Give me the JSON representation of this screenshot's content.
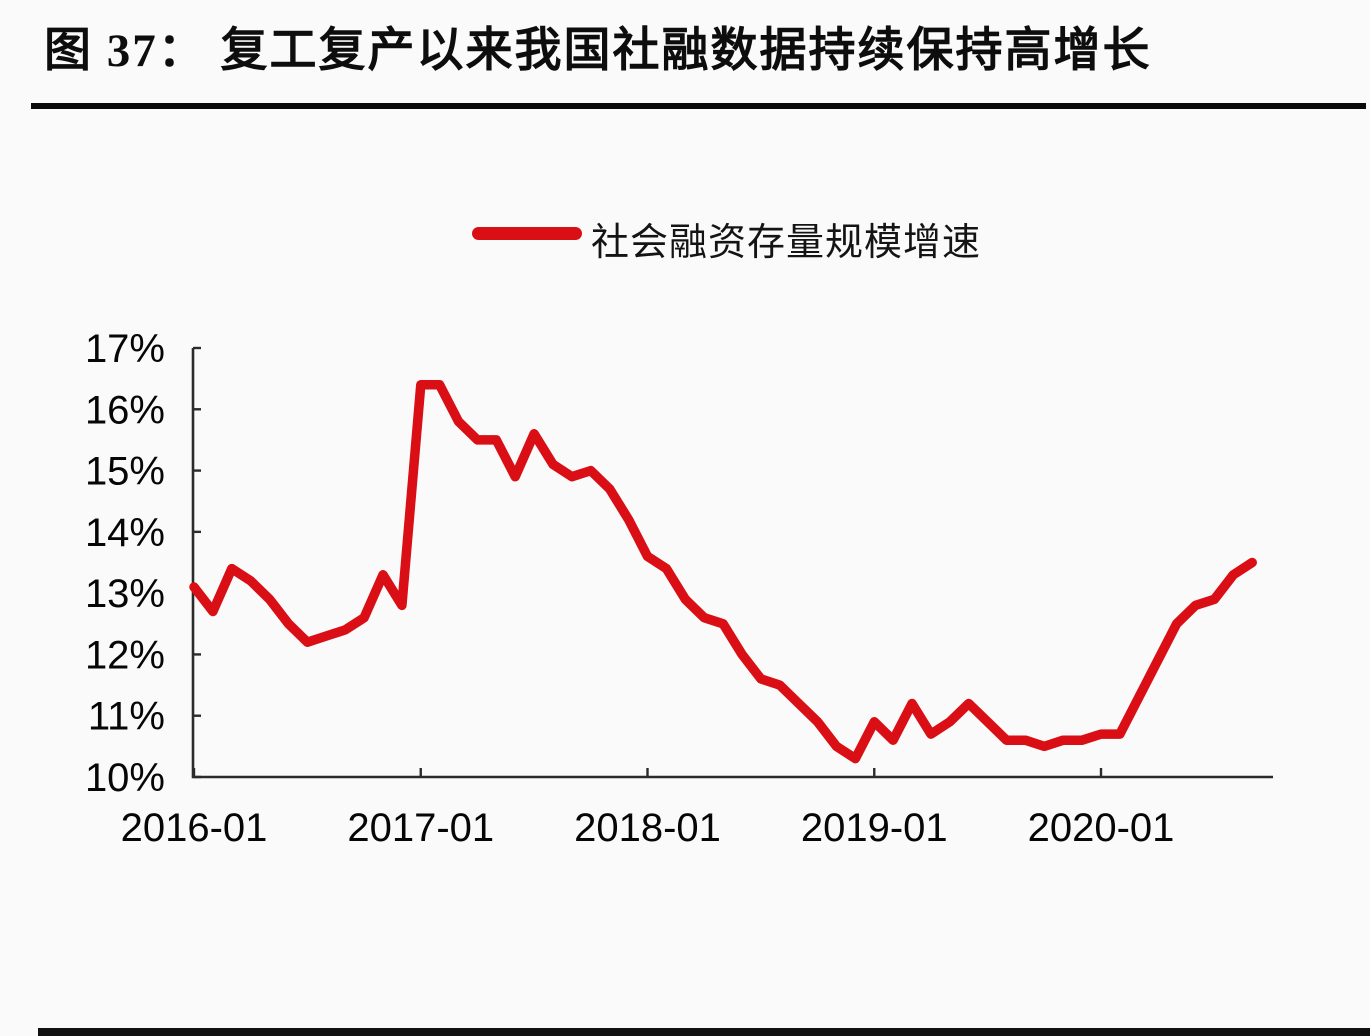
{
  "figure": {
    "title": "图 37：  复工复产以来我国社融数据持续保持高增长",
    "legend_label": "社会融资存量规模增速"
  },
  "colors": {
    "line": "#d90f15",
    "axis": "#2b2b2b",
    "text": "#060606",
    "rule": "#0a0a0a",
    "background": "#fbfafb"
  },
  "chart_data": {
    "type": "line",
    "title": "图 37：复工复产以来我国社融数据持续保持高增长",
    "xlabel": "",
    "ylabel": "",
    "y_unit": "%",
    "ylim": [
      10,
      17
    ],
    "yticks": [
      "10%",
      "11%",
      "12%",
      "13%",
      "14%",
      "15%",
      "16%",
      "17%"
    ],
    "xticks": [
      "2016-01",
      "2017-01",
      "2018-01",
      "2019-01",
      "2020-01"
    ],
    "grid": false,
    "legend_position": "top-center",
    "series": [
      {
        "name": "社会融资存量规模增速",
        "color": "#d90f15",
        "x": [
          "2016-01",
          "2016-02",
          "2016-03",
          "2016-04",
          "2016-05",
          "2016-06",
          "2016-07",
          "2016-08",
          "2016-09",
          "2016-10",
          "2016-11",
          "2016-12",
          "2017-01",
          "2017-02",
          "2017-03",
          "2017-04",
          "2017-05",
          "2017-06",
          "2017-07",
          "2017-08",
          "2017-09",
          "2017-10",
          "2017-11",
          "2017-12",
          "2018-01",
          "2018-02",
          "2018-03",
          "2018-04",
          "2018-05",
          "2018-06",
          "2018-07",
          "2018-08",
          "2018-09",
          "2018-10",
          "2018-11",
          "2018-12",
          "2019-01",
          "2019-02",
          "2019-03",
          "2019-04",
          "2019-05",
          "2019-06",
          "2019-07",
          "2019-08",
          "2019-09",
          "2019-10",
          "2019-11",
          "2019-12",
          "2020-01",
          "2020-02",
          "2020-03",
          "2020-04",
          "2020-05",
          "2020-06",
          "2020-07",
          "2020-08",
          "2020-09"
        ],
        "values": [
          13.1,
          12.7,
          13.4,
          13.2,
          12.9,
          12.5,
          12.2,
          12.3,
          12.4,
          12.6,
          13.3,
          12.8,
          16.4,
          16.4,
          15.8,
          15.5,
          15.5,
          14.9,
          15.6,
          15.1,
          14.9,
          15.0,
          14.7,
          14.2,
          13.6,
          13.4,
          12.9,
          12.6,
          12.5,
          12.0,
          11.6,
          11.5,
          11.2,
          10.9,
          10.5,
          10.3,
          10.9,
          10.6,
          11.2,
          10.7,
          10.9,
          11.2,
          10.9,
          10.6,
          10.6,
          10.5,
          10.6,
          10.6,
          10.7,
          10.7,
          11.3,
          11.9,
          12.5,
          12.8,
          12.9,
          13.3,
          13.5
        ]
      }
    ]
  }
}
